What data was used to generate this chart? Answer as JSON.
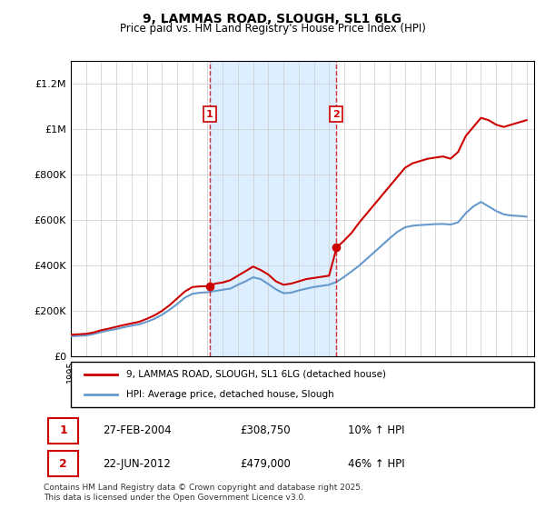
{
  "title": "9, LAMMAS ROAD, SLOUGH, SL1 6LG",
  "subtitle": "Price paid vs. HM Land Registry's House Price Index (HPI)",
  "ylabel_ticks": [
    "£0",
    "£200K",
    "£400K",
    "£600K",
    "£800K",
    "£1M",
    "£1.2M"
  ],
  "ytick_values": [
    0,
    200000,
    400000,
    600000,
    800000,
    1000000,
    1200000
  ],
  "ylim": [
    0,
    1300000
  ],
  "xlim_start": 1995.0,
  "xlim_end": 2025.5,
  "bg_color": "#f0f4ff",
  "plot_bg": "#ffffff",
  "red_line_color": "#cc0000",
  "blue_line_color": "#6699cc",
  "vline_color": "#cc0000",
  "vline_alpha": 0.5,
  "shade_color": "#ddeeff",
  "marker1_x": 2004.15,
  "marker1_y": 308750,
  "marker2_x": 2012.47,
  "marker2_y": 479000,
  "legend_label_red": "9, LAMMAS ROAD, SLOUGH, SL1 6LG (detached house)",
  "legend_label_blue": "HPI: Average price, detached house, Slough",
  "table_rows": [
    {
      "num": "1",
      "date": "27-FEB-2004",
      "price": "£308,750",
      "hpi": "10% ↑ HPI"
    },
    {
      "num": "2",
      "date": "22-JUN-2012",
      "price": "£479,000",
      "hpi": "46% ↑ HPI"
    }
  ],
  "footnote": "Contains HM Land Registry data © Crown copyright and database right 2025.\nThis data is licensed under the Open Government Licence v3.0.",
  "red_x": [
    1995.0,
    1995.5,
    1996.0,
    1996.5,
    1997.0,
    1997.5,
    1998.0,
    1998.5,
    1999.0,
    1999.5,
    2000.0,
    2000.5,
    2001.0,
    2001.5,
    2002.0,
    2002.5,
    2003.0,
    2003.5,
    2004.0,
    2004.2,
    2004.5,
    2005.0,
    2005.5,
    2006.0,
    2006.5,
    2007.0,
    2007.5,
    2008.0,
    2008.5,
    2009.0,
    2009.5,
    2010.0,
    2010.5,
    2011.0,
    2011.5,
    2012.0,
    2012.5,
    2013.0,
    2013.5,
    2014.0,
    2014.5,
    2015.0,
    2015.5,
    2016.0,
    2016.5,
    2017.0,
    2017.5,
    2018.0,
    2018.5,
    2019.0,
    2019.5,
    2020.0,
    2020.5,
    2021.0,
    2021.5,
    2022.0,
    2022.5,
    2023.0,
    2023.5,
    2024.0,
    2024.5,
    2025.0
  ],
  "red_y": [
    95000,
    97000,
    99000,
    105000,
    115000,
    122000,
    130000,
    138000,
    145000,
    152000,
    165000,
    180000,
    200000,
    225000,
    255000,
    285000,
    305000,
    308000,
    308750,
    310000,
    320000,
    325000,
    335000,
    355000,
    375000,
    395000,
    380000,
    360000,
    330000,
    315000,
    320000,
    330000,
    340000,
    345000,
    350000,
    355000,
    479000,
    510000,
    545000,
    590000,
    630000,
    670000,
    710000,
    750000,
    790000,
    830000,
    850000,
    860000,
    870000,
    875000,
    880000,
    870000,
    900000,
    970000,
    1010000,
    1050000,
    1040000,
    1020000,
    1010000,
    1020000,
    1030000,
    1040000
  ],
  "blue_x": [
    1995.0,
    1995.5,
    1996.0,
    1996.5,
    1997.0,
    1997.5,
    1998.0,
    1998.5,
    1999.0,
    1999.5,
    2000.0,
    2000.5,
    2001.0,
    2001.5,
    2002.0,
    2002.5,
    2003.0,
    2003.5,
    2004.0,
    2004.5,
    2005.0,
    2005.5,
    2006.0,
    2006.5,
    2007.0,
    2007.5,
    2008.0,
    2008.5,
    2009.0,
    2009.5,
    2010.0,
    2010.5,
    2011.0,
    2011.5,
    2012.0,
    2012.5,
    2013.0,
    2013.5,
    2014.0,
    2014.5,
    2015.0,
    2015.5,
    2016.0,
    2016.5,
    2017.0,
    2017.5,
    2018.0,
    2018.5,
    2019.0,
    2019.5,
    2020.0,
    2020.5,
    2021.0,
    2021.5,
    2022.0,
    2022.5,
    2023.0,
    2023.5,
    2024.0,
    2024.5,
    2025.0
  ],
  "blue_y": [
    88000,
    90000,
    92000,
    98000,
    107000,
    114000,
    120000,
    128000,
    135000,
    141000,
    152000,
    165000,
    183000,
    205000,
    230000,
    258000,
    275000,
    280000,
    282000,
    288000,
    293000,
    298000,
    315000,
    330000,
    348000,
    340000,
    318000,
    295000,
    278000,
    280000,
    290000,
    298000,
    305000,
    310000,
    315000,
    328000,
    350000,
    375000,
    400000,
    430000,
    460000,
    490000,
    520000,
    548000,
    568000,
    575000,
    578000,
    580000,
    582000,
    583000,
    580000,
    590000,
    630000,
    660000,
    680000,
    660000,
    640000,
    625000,
    620000,
    618000,
    615000
  ]
}
